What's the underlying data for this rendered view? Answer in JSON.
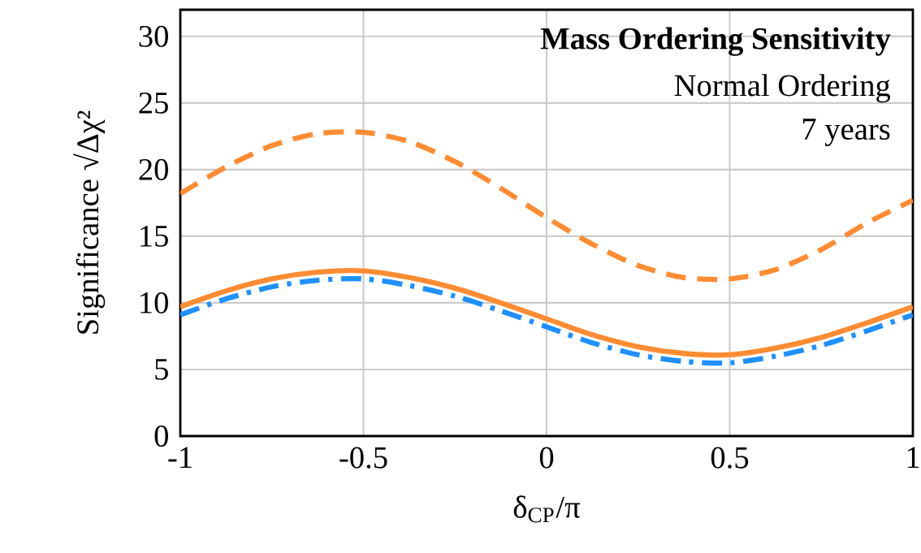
{
  "chart_data": {
    "type": "line",
    "title": "Mass Ordering Sensitivity",
    "subtitle": "Normal Ordering",
    "annotations": [
      "7 years"
    ],
    "xlabel": "δ$_{CP}$/π",
    "ylabel": "Significance √Δχ²",
    "x": [
      -1,
      -0.875,
      -0.75,
      -0.625,
      -0.5,
      -0.375,
      -0.25,
      -0.125,
      0,
      0.125,
      0.25,
      0.375,
      0.5,
      0.625,
      0.75,
      0.875,
      1
    ],
    "series": [
      {
        "color": "#ff8c33",
        "line_style": "dashed",
        "values": [
          18.2,
          20.2,
          21.8,
          22.7,
          22.8,
          22.1,
          20.6,
          18.6,
          16.4,
          14.4,
          12.8,
          11.9,
          11.8,
          12.5,
          14.0,
          16.0,
          17.7
        ]
      },
      {
        "color": "#ff8c33",
        "line_style": "solid",
        "values": [
          9.7,
          10.9,
          11.8,
          12.3,
          12.4,
          11.9,
          11.1,
          10.0,
          8.8,
          7.6,
          6.7,
          6.2,
          6.1,
          6.6,
          7.4,
          8.5,
          9.7
        ]
      },
      {
        "color": "#1e90ff",
        "line_style": "dashdot",
        "values": [
          9.1,
          10.3,
          11.2,
          11.7,
          11.8,
          11.3,
          10.5,
          9.4,
          8.2,
          7.0,
          6.1,
          5.6,
          5.5,
          6.0,
          6.8,
          7.9,
          9.1
        ]
      }
    ],
    "xlim": [
      -1,
      1
    ],
    "ylim": [
      0,
      32
    ],
    "xticks": [
      -1,
      -0.5,
      0,
      0.5,
      1
    ],
    "yticks": [
      0,
      5,
      10,
      15,
      20,
      25,
      30
    ],
    "grid": true,
    "marker": "none"
  }
}
